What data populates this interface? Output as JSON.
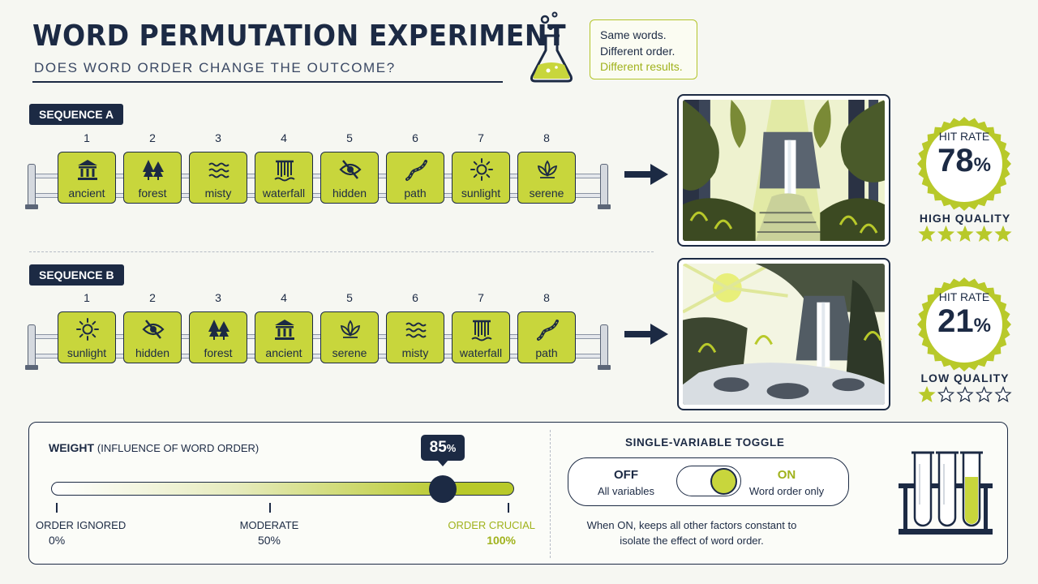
{
  "header": {
    "title": "WORD PERMUTATION EXPERIMENT",
    "subtitle": "DOES WORD ORDER CHANGE THE OUTCOME?",
    "callout": [
      "Same words.",
      "Different order.",
      "Different results."
    ]
  },
  "sequence_a": {
    "label": "SEQUENCE A",
    "numbers": [
      "1",
      "2",
      "3",
      "4",
      "5",
      "6",
      "7",
      "8"
    ],
    "words": [
      {
        "label": "ancient",
        "icon": "pillar-icon"
      },
      {
        "label": "forest",
        "icon": "trees-icon"
      },
      {
        "label": "misty",
        "icon": "waves-icon"
      },
      {
        "label": "waterfall",
        "icon": "waterfall-icon"
      },
      {
        "label": "hidden",
        "icon": "eye-slash-icon"
      },
      {
        "label": "path",
        "icon": "path-icon"
      },
      {
        "label": "sunlight",
        "icon": "sun-icon"
      },
      {
        "label": "serene",
        "icon": "lotus-icon"
      }
    ],
    "result": {
      "hit_rate_label": "HIT RATE",
      "hit_rate": 78,
      "hit_rate_unit": "%",
      "quality": "HIGH QUALITY",
      "stars_filled": 5,
      "stars_total": 5
    }
  },
  "sequence_b": {
    "label": "SEQUENCE B",
    "numbers": [
      "1",
      "2",
      "3",
      "4",
      "5",
      "6",
      "7",
      "8"
    ],
    "words": [
      {
        "label": "sunlight",
        "icon": "sun-icon"
      },
      {
        "label": "hidden",
        "icon": "eye-slash-icon"
      },
      {
        "label": "forest",
        "icon": "trees-icon"
      },
      {
        "label": "ancient",
        "icon": "pillar-icon"
      },
      {
        "label": "serene",
        "icon": "lotus-icon"
      },
      {
        "label": "misty",
        "icon": "waves-icon"
      },
      {
        "label": "waterfall",
        "icon": "waterfall-icon"
      },
      {
        "label": "path",
        "icon": "path-icon"
      }
    ],
    "result": {
      "hit_rate_label": "HIT RATE",
      "hit_rate": 21,
      "hit_rate_unit": "%",
      "quality": "LOW QUALITY",
      "stars_filled": 1,
      "stars_total": 5
    }
  },
  "weight": {
    "title": "WEIGHT",
    "subtitle": "(INFLUENCE OF WORD ORDER)",
    "value": 85,
    "value_unit": "%",
    "scale": [
      {
        "label": "ORDER IGNORED",
        "value": "0%"
      },
      {
        "label": "MODERATE",
        "value": "50%"
      },
      {
        "label": "ORDER CRUCIAL",
        "value": "100%"
      }
    ]
  },
  "toggle": {
    "title": "SINGLE-VARIABLE TOGGLE",
    "off_label": "OFF",
    "off_sub": "All variables",
    "on_label": "ON",
    "on_sub": "Word order only",
    "state": "on",
    "description": "When ON, keeps all other factors constant to isolate the effect of word order."
  },
  "colors": {
    "navy": "#1c2a44",
    "accent": "#c8d63c",
    "accent_text": "#a0b21c",
    "background": "#f6f7f2"
  }
}
